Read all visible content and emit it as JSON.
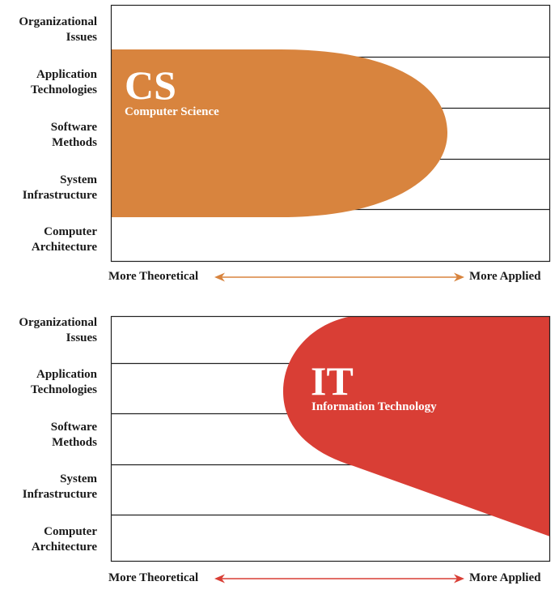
{
  "rows": [
    {
      "line1": "Organizational",
      "line2": "Issues"
    },
    {
      "line1": "Application",
      "line2": "Technologies"
    },
    {
      "line1": "Software",
      "line2": "Methods"
    },
    {
      "line1": "System",
      "line2": "Infrastructure"
    },
    {
      "line1": "Computer",
      "line2": "Architecture"
    }
  ],
  "axis": {
    "left": "More Theoretical",
    "right": "More Applied"
  },
  "cs": {
    "abbr": "CS",
    "name": "Computer Science",
    "color": "#D8843E"
  },
  "it": {
    "abbr": "IT",
    "name": "Information Technology",
    "color": "#D93E35"
  }
}
